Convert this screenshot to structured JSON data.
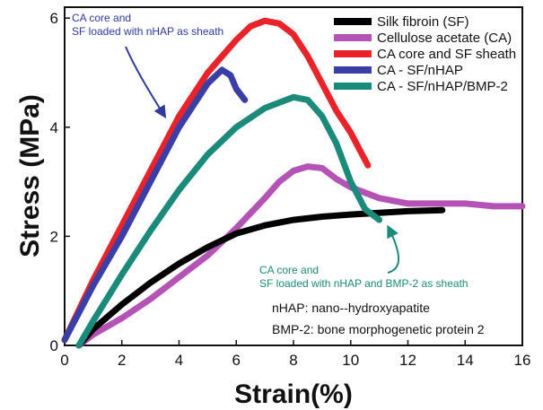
{
  "chart_data": {
    "type": "line",
    "xlabel": "Strain(%)",
    "ylabel": "Stress (MPa)",
    "xlim": [
      0,
      16
    ],
    "ylim": [
      0,
      6.2
    ],
    "xticks": [
      "0",
      "2",
      "4",
      "6",
      "8",
      "10",
      "12",
      "14",
      "16"
    ],
    "yticks": [
      "0",
      "2",
      "4",
      "6"
    ],
    "grid": false,
    "legend_position": "top-right",
    "series": [
      {
        "name": "Silk fibroin (SF)",
        "color": "#000000",
        "x": [
          0.5,
          1,
          2,
          3,
          4,
          5,
          6,
          7,
          8,
          9,
          10,
          11,
          12,
          13.2
        ],
        "y": [
          0,
          0.3,
          0.75,
          1.15,
          1.5,
          1.8,
          2.05,
          2.2,
          2.3,
          2.36,
          2.4,
          2.43,
          2.46,
          2.48
        ]
      },
      {
        "name": "Cellulose acetate (CA)",
        "color": "#b552b5",
        "x": [
          0.5,
          1,
          2,
          3,
          4,
          5,
          6,
          7,
          7.5,
          8,
          8.5,
          9,
          9.5,
          10,
          11,
          12,
          13,
          14,
          15,
          16
        ],
        "y": [
          0,
          0.2,
          0.5,
          0.85,
          1.25,
          1.65,
          2.15,
          2.7,
          3.0,
          3.2,
          3.28,
          3.25,
          3.05,
          2.9,
          2.7,
          2.6,
          2.6,
          2.6,
          2.55,
          2.55
        ]
      },
      {
        "name": "CA core and SF sheath",
        "color": "#e8242a",
        "x": [
          0,
          1,
          2,
          3,
          4,
          5,
          6,
          6.5,
          7,
          7.5,
          8,
          8.5,
          9,
          9.5,
          10,
          10.3,
          10.6
        ],
        "y": [
          0.1,
          1.2,
          2.2,
          3.2,
          4.2,
          5.0,
          5.6,
          5.85,
          5.95,
          5.9,
          5.7,
          5.3,
          4.8,
          4.3,
          3.9,
          3.6,
          3.3
        ]
      },
      {
        "name": "CA - SF/nHAP",
        "color": "#3a3fa8",
        "x": [
          0,
          1,
          2,
          3,
          4,
          5,
          5.5,
          5.8,
          6,
          6.3
        ],
        "y": [
          0.1,
          1.1,
          2.0,
          3.0,
          4.0,
          4.8,
          5.05,
          4.95,
          4.7,
          4.5
        ]
      },
      {
        "name": "CA - SF/nHAP/BMP-2",
        "color": "#1a8a7a",
        "x": [
          0.5,
          1,
          2,
          3,
          4,
          5,
          6,
          7,
          8,
          8.5,
          9,
          9.5,
          10,
          10.5,
          11
        ],
        "y": [
          0,
          0.45,
          1.3,
          2.1,
          2.85,
          3.5,
          4.0,
          4.35,
          4.55,
          4.5,
          4.2,
          3.7,
          3.0,
          2.5,
          2.3
        ]
      }
    ],
    "annotations": [
      {
        "text": [
          "CA core and",
          "SF loaded with nHAP as sheath"
        ],
        "color": "#2e3a9c",
        "points_to": {
          "x": 3.5,
          "y": 4.2
        }
      },
      {
        "text": [
          "CA core and",
          "SF loaded with nHAP and BMP-2 as sheath"
        ],
        "color": "#1a8a7a",
        "points_to": {
          "x": 11.0,
          "y": 2.4
        }
      }
    ],
    "notes": [
      "nHAP: nano--hydroxyapatite",
      "BMP-2: bone morphogenetic protein 2"
    ]
  }
}
